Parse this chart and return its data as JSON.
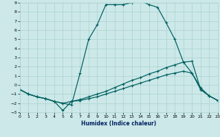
{
  "xlabel": "Humidex (Indice chaleur)",
  "line_color": "#006060",
  "bg_color": "#cce8e8",
  "grid_color": "#aad0d0",
  "xlim": [
    0,
    23
  ],
  "ylim": [
    -3,
    9
  ],
  "xticks": [
    0,
    1,
    2,
    3,
    4,
    5,
    6,
    7,
    8,
    9,
    10,
    11,
    12,
    13,
    14,
    15,
    16,
    17,
    18,
    19,
    20,
    21,
    22,
    23
  ],
  "yticks": [
    -3,
    -2,
    -1,
    0,
    1,
    2,
    3,
    4,
    5,
    6,
    7,
    8,
    9
  ],
  "lineA_x": [
    0,
    1,
    2,
    3,
    4,
    5,
    6,
    7,
    8,
    9,
    10,
    11,
    12,
    13,
    14,
    15,
    16,
    17,
    18,
    19,
    20,
    21,
    22,
    23
  ],
  "lineA_y": [
    -0.5,
    -1.0,
    -1.3,
    -1.5,
    -1.8,
    -2.0,
    -2.2,
    1.3,
    5.0,
    6.6,
    8.8,
    8.8,
    8.8,
    9.0,
    9.2,
    8.8,
    8.5,
    6.8,
    5.0,
    2.5,
    1.3,
    -0.3,
    -1.2,
    -1.7
  ],
  "lineB_x": [
    0,
    1,
    2,
    3,
    4,
    5,
    6,
    7,
    8,
    9,
    10,
    11,
    12,
    13,
    14,
    15,
    16,
    17,
    18,
    19,
    20,
    21,
    22,
    23
  ],
  "lineB_y": [
    -0.5,
    -1.0,
    -1.3,
    -1.5,
    -1.8,
    -2.8,
    -1.8,
    -1.7,
    -1.5,
    -1.3,
    -1.0,
    -0.7,
    -0.4,
    -0.1,
    0.2,
    0.5,
    0.8,
    1.1,
    1.3,
    1.5,
    1.3,
    -0.5,
    -1.2,
    -1.7
  ],
  "lineC_x": [
    0,
    1,
    2,
    3,
    4,
    5,
    6,
    7,
    8,
    9,
    10,
    11,
    12,
    13,
    14,
    15,
    16,
    17,
    18,
    19,
    20,
    21,
    22,
    23
  ],
  "lineC_y": [
    -0.5,
    -1.0,
    -1.3,
    -1.5,
    -1.8,
    -2.0,
    -1.8,
    -1.6,
    -1.3,
    -1.0,
    -0.7,
    -0.3,
    0.1,
    0.5,
    0.8,
    1.2,
    1.5,
    1.9,
    2.2,
    2.5,
    2.6,
    -0.5,
    -1.2,
    -1.7
  ]
}
